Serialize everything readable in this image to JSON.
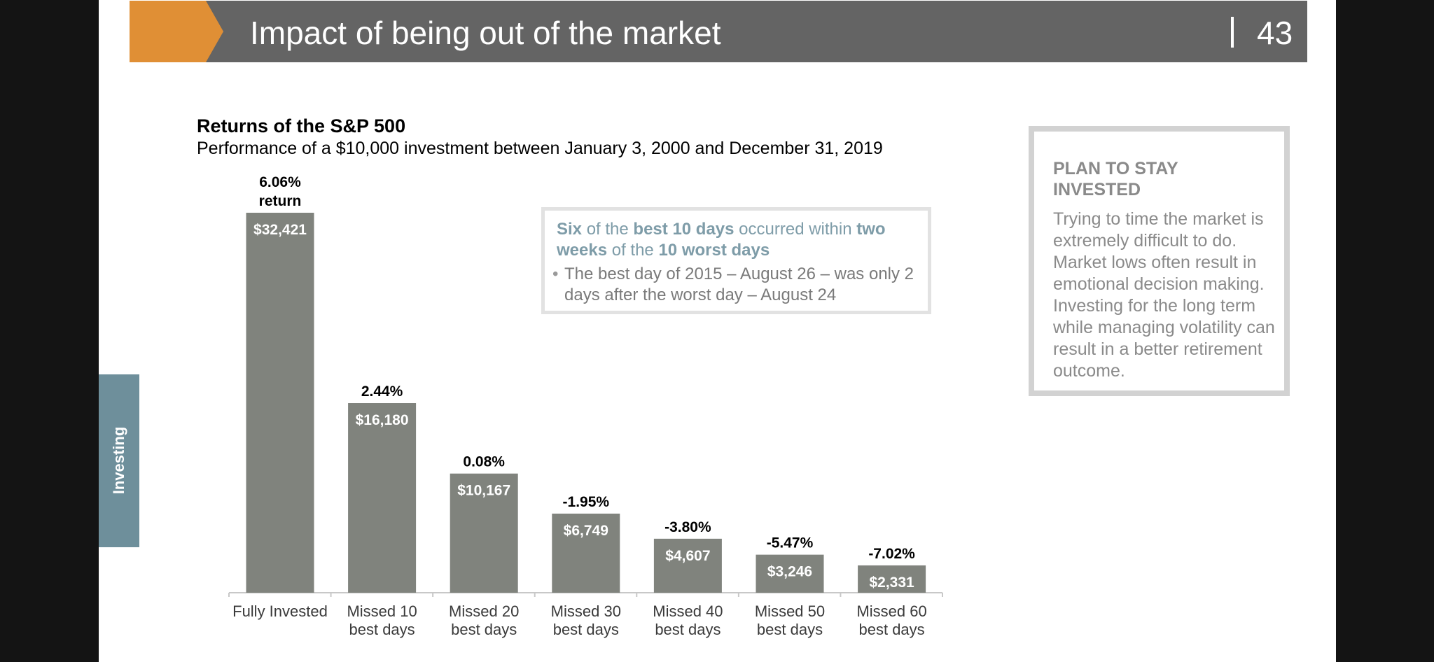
{
  "header": {
    "title": "Impact of being out of the market",
    "page_number": "43"
  },
  "side_tab": {
    "label": "Investing"
  },
  "callout": {
    "heading_parts": [
      {
        "text": "Six",
        "bold": true
      },
      {
        "text": " of the ",
        "bold": false
      },
      {
        "text": "best 10 days",
        "bold": true
      },
      {
        "text": " occurred within ",
        "bold": false
      },
      {
        "text": "two weeks",
        "bold": true
      },
      {
        "text": " of the ",
        "bold": false
      },
      {
        "text": "10 worst days",
        "bold": true
      }
    ],
    "bullet": "The best day of 2015 – August 26 – was only 2 days after the worst day – August 24"
  },
  "side_box": {
    "heading": "PLAN TO STAY INVESTED",
    "body": "Trying to time the market is extremely difficult to do. Market lows often result in emotional decision making. Investing for the long term while managing volatility can result in a better retirement outcome."
  },
  "colors": {
    "accent_orange": "#e08f35",
    "header_gray": "#646464",
    "bar_gray": "#80837d",
    "tab_blue": "#6e8f9b",
    "callout_text": "#7e9ca8"
  },
  "chart_data": {
    "type": "bar",
    "title": "Returns of the S&P 500",
    "subtitle": "Performance of a $10,000 investment between January 3, 2000 and December 31, 2019",
    "categories": [
      [
        "Fully Invested"
      ],
      [
        "Missed 10",
        "best days"
      ],
      [
        "Missed 20",
        "best days"
      ],
      [
        "Missed 30",
        "best days"
      ],
      [
        "Missed 40",
        "best days"
      ],
      [
        "Missed 50",
        "best days"
      ],
      [
        "Missed 60",
        "best days"
      ]
    ],
    "values": [
      32421,
      16180,
      10167,
      6749,
      4607,
      3246,
      2331
    ],
    "value_labels": [
      "$32,421",
      "$16,180",
      "$10,167",
      "$6,749",
      "$4,607",
      "$3,246",
      "$2,331"
    ],
    "return_labels": [
      [
        "6.06%",
        "return"
      ],
      [
        "2.44%"
      ],
      [
        "0.08%"
      ],
      [
        "-1.95%"
      ],
      [
        "-3.80%"
      ],
      [
        "-5.47%"
      ],
      [
        "-7.02%"
      ]
    ],
    "ylim": [
      0,
      32421
    ],
    "grid": false,
    "legend": "none"
  }
}
